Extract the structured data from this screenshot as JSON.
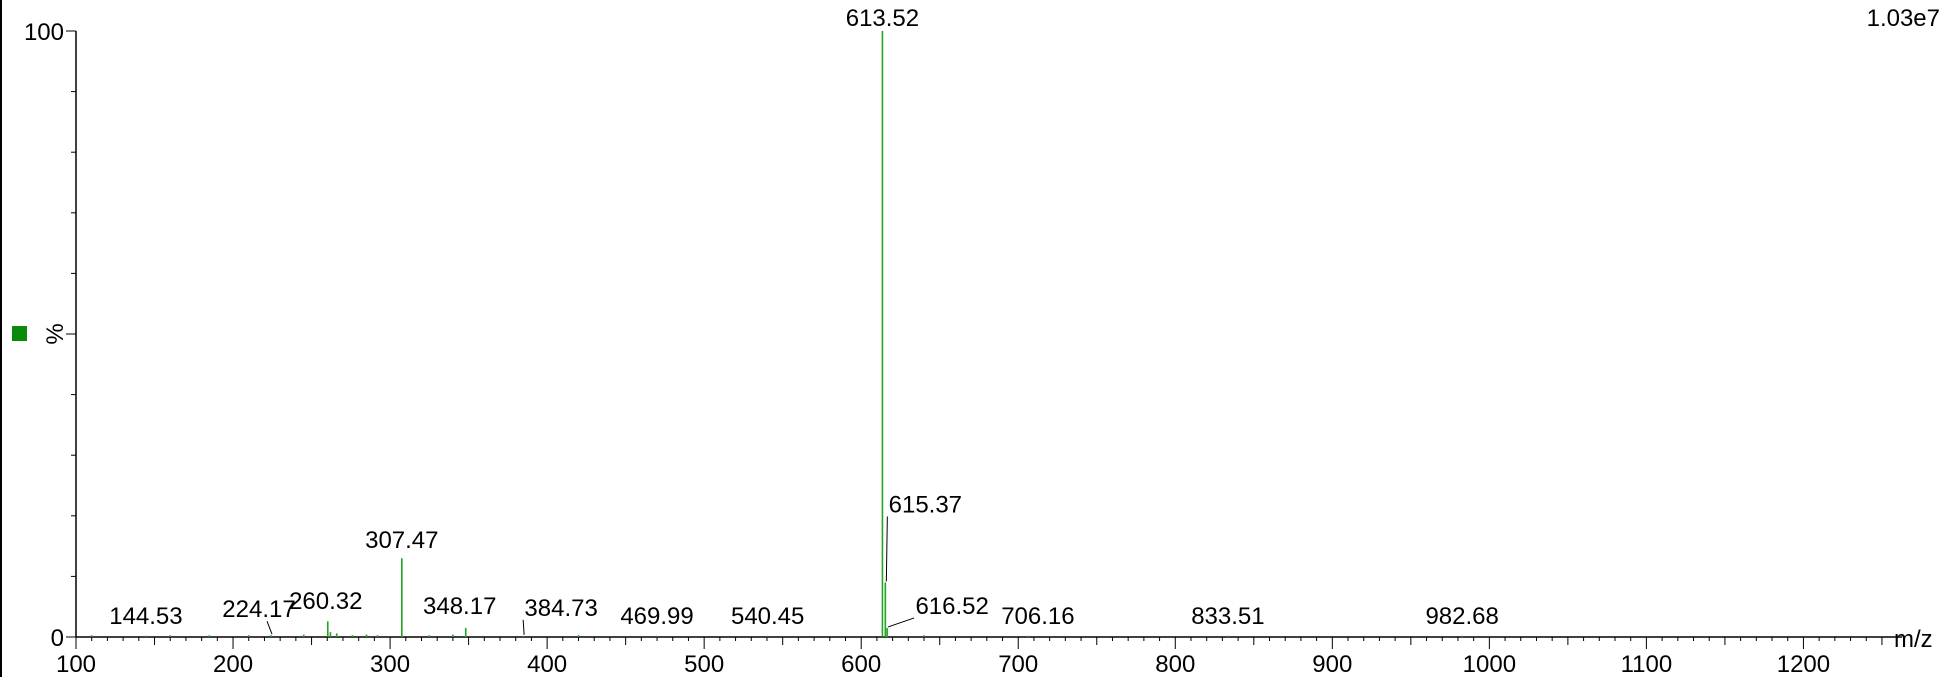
{
  "chart_data": {
    "type": "bar",
    "title": "",
    "xlabel": "m/z",
    "ylabel": "%",
    "scale_label": "1.03e7",
    "colors": {
      "series": "#22a322",
      "scale": "#1a8a1a",
      "marker": "#0a8a0a",
      "axis": "#000000"
    },
    "xlim": [
      100,
      1250
    ],
    "ylim": [
      0,
      100
    ],
    "x_ticks": [
      100,
      200,
      300,
      400,
      500,
      600,
      700,
      800,
      900,
      1000,
      1100,
      1200
    ],
    "y_ticks": [
      0,
      100
    ],
    "peaks": [
      {
        "mz": 110,
        "intensity": 0.3
      },
      {
        "mz": 144.53,
        "intensity": 0.2
      },
      {
        "mz": 160,
        "intensity": 0.3
      },
      {
        "mz": 185,
        "intensity": 0.3
      },
      {
        "mz": 210,
        "intensity": 0.3
      },
      {
        "mz": 224.17,
        "intensity": 0.3
      },
      {
        "mz": 245,
        "intensity": 0.4
      },
      {
        "mz": 260.32,
        "intensity": 2.6
      },
      {
        "mz": 262,
        "intensity": 0.8
      },
      {
        "mz": 266,
        "intensity": 0.6
      },
      {
        "mz": 276,
        "intensity": 0.3
      },
      {
        "mz": 285,
        "intensity": 0.4
      },
      {
        "mz": 292,
        "intensity": 0.3
      },
      {
        "mz": 307.47,
        "intensity": 13.0
      },
      {
        "mz": 325,
        "intensity": 0.3
      },
      {
        "mz": 340,
        "intensity": 0.4
      },
      {
        "mz": 348.17,
        "intensity": 1.5
      },
      {
        "mz": 384.73,
        "intensity": 0.2
      },
      {
        "mz": 420,
        "intensity": 0.3
      },
      {
        "mz": 469.99,
        "intensity": 0.2
      },
      {
        "mz": 540.45,
        "intensity": 0.2
      },
      {
        "mz": 613.52,
        "intensity": 100
      },
      {
        "mz": 615.37,
        "intensity": 9.0
      },
      {
        "mz": 616.52,
        "intensity": 1.5
      },
      {
        "mz": 640,
        "intensity": 0.3
      },
      {
        "mz": 706.16,
        "intensity": 0.2
      },
      {
        "mz": 833.51,
        "intensity": 0.2
      },
      {
        "mz": 982.68,
        "intensity": 0.2
      }
    ],
    "annotations": [
      {
        "text": "144.53",
        "mz": 144.53,
        "leader": false
      },
      {
        "text": "224.17",
        "mz": 224.17,
        "leader": true
      },
      {
        "text": "260.32",
        "mz": 260.32,
        "leader": false
      },
      {
        "text": "307.47",
        "mz": 307.47,
        "leader": false
      },
      {
        "text": "348.17",
        "mz": 348.17,
        "leader": false
      },
      {
        "text": "384.73",
        "mz": 384.73,
        "leader": true
      },
      {
        "text": "469.99",
        "mz": 469.99,
        "leader": false
      },
      {
        "text": "540.45",
        "mz": 540.45,
        "leader": false
      },
      {
        "text": "613.52",
        "mz": 613.52,
        "leader": false
      },
      {
        "text": "615.37",
        "mz": 615.37,
        "leader": true
      },
      {
        "text": "616.52",
        "mz": 616.52,
        "leader": true
      },
      {
        "text": "706.16",
        "mz": 706.16,
        "leader": false
      },
      {
        "text": "833.51",
        "mz": 833.51,
        "leader": false
      },
      {
        "text": "982.68",
        "mz": 982.68,
        "leader": false
      }
    ]
  }
}
